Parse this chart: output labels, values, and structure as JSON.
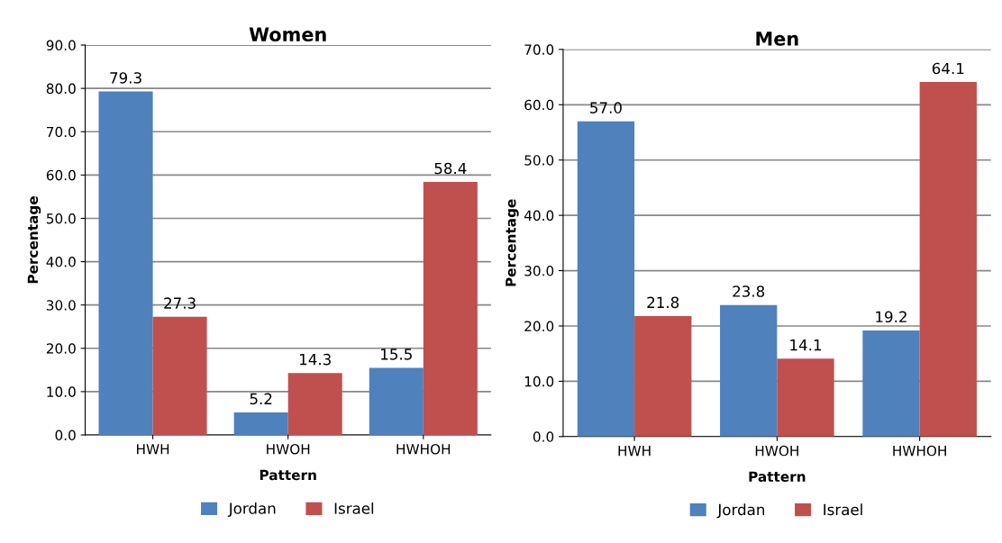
{
  "chart_data": [
    {
      "type": "bar",
      "title": "Women",
      "xlabel": "Pattern",
      "ylabel": "Percentage",
      "categories": [
        "HWH",
        "HWOH",
        "HWHOH"
      ],
      "series": [
        {
          "name": "Jordan",
          "color": "#4f81bd",
          "values": [
            79.3,
            5.2,
            15.5
          ],
          "value_labels": [
            "79.3",
            "5.2",
            "15.5"
          ]
        },
        {
          "name": "Israel",
          "color": "#c0504d",
          "values": [
            27.3,
            14.3,
            58.4
          ],
          "value_labels": [
            "27.3",
            "14.3",
            "58.4"
          ]
        }
      ],
      "ylim": [
        0,
        90
      ],
      "yticks": [
        {
          "value": 0,
          "label": "0.0"
        },
        {
          "value": 10,
          "label": "10.0"
        },
        {
          "value": 20,
          "label": "20.0"
        },
        {
          "value": 30,
          "label": "30.0"
        },
        {
          "value": 40,
          "label": "40.0"
        },
        {
          "value": 50,
          "label": "50.0"
        },
        {
          "value": 60,
          "label": "60.0"
        },
        {
          "value": 70,
          "label": "70.0"
        },
        {
          "value": 80,
          "label": "80.0"
        },
        {
          "value": 90,
          "label": "90.0"
        }
      ],
      "grid": "y",
      "legend": "bottom"
    },
    {
      "type": "bar",
      "title": "Men",
      "xlabel": "Pattern",
      "ylabel": "Percentage",
      "categories": [
        "HWH",
        "HWOH",
        "HWHOH"
      ],
      "series": [
        {
          "name": "Jordan",
          "color": "#4f81bd",
          "values": [
            57.0,
            23.8,
            19.2
          ],
          "value_labels": [
            "57.0",
            "23.8",
            "19.2"
          ]
        },
        {
          "name": "Israel",
          "color": "#c0504d",
          "values": [
            21.8,
            14.1,
            64.1
          ],
          "value_labels": [
            "21.8",
            "14.1",
            "64.1"
          ]
        }
      ],
      "ylim": [
        0,
        70
      ],
      "yticks": [
        {
          "value": 0,
          "label": "0.0"
        },
        {
          "value": 10,
          "label": "10.0"
        },
        {
          "value": 20,
          "label": "20.0"
        },
        {
          "value": 30,
          "label": "30.0"
        },
        {
          "value": 40,
          "label": "40.0"
        },
        {
          "value": 50,
          "label": "50.0"
        },
        {
          "value": 60,
          "label": "60.0"
        },
        {
          "value": 70,
          "label": "70.0"
        }
      ],
      "grid": "y",
      "legend": "bottom"
    }
  ]
}
